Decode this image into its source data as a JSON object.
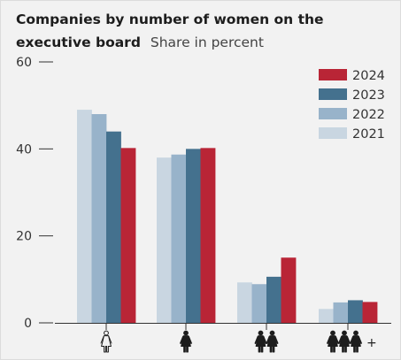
{
  "chart_data": {
    "type": "bar",
    "title": "Companies by number of women on the executive board",
    "subtitle": "Share in percent",
    "categories": [
      "0",
      "1",
      "2",
      "3+"
    ],
    "category_icons": [
      "outline-woman-icon",
      "woman-icon",
      "two-women-icon",
      "three-women-plus-icon"
    ],
    "plus_label": "+",
    "series": [
      {
        "name": "2021",
        "color": "#c9d6e1",
        "values": [
          49,
          38,
          9.3,
          3.2
        ]
      },
      {
        "name": "2022",
        "color": "#98b3ca",
        "values": [
          48,
          38.7,
          8.9,
          4.7
        ]
      },
      {
        "name": "2023",
        "color": "#44718e",
        "values": [
          44,
          40,
          10.6,
          5.2
        ]
      },
      {
        "name": "2024",
        "color": "#b92536",
        "values": [
          40.2,
          40.2,
          15,
          4.8
        ]
      }
    ],
    "legend_order": [
      "2024",
      "2023",
      "2022",
      "2021"
    ],
    "legend_position": "top-right",
    "ylim": [
      0,
      60
    ],
    "yticks": [
      0,
      20,
      40,
      60
    ],
    "ytick_labels": [
      "0",
      "20",
      "40",
      "60"
    ],
    "grid": false
  }
}
